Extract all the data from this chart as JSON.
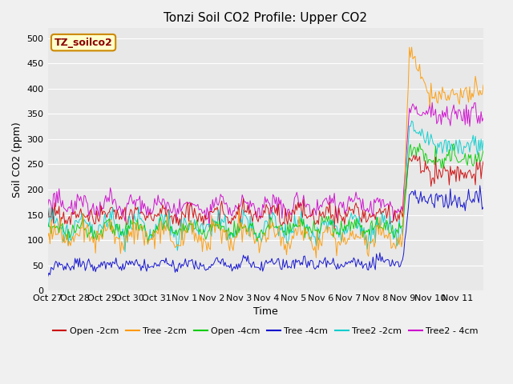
{
  "title": "Tonzi Soil CO2 Profile: Upper CO2",
  "xlabel": "Time",
  "ylabel": "Soil CO2 (ppm)",
  "ylim": [
    0,
    520
  ],
  "yticks": [
    0,
    50,
    100,
    150,
    200,
    250,
    300,
    350,
    400,
    450,
    500
  ],
  "x_labels": [
    "Oct 27",
    "Oct 28",
    "Oct 29",
    "Oct 30",
    "Oct 31",
    "Nov 1",
    "Nov 2",
    "Nov 3",
    "Nov 4",
    "Nov 5",
    "Nov 6",
    "Nov 7",
    "Nov 8",
    "Nov 9",
    "Nov 10",
    "Nov 11"
  ],
  "legend_label": "TZ_soilco2",
  "series": {
    "Open -2cm": {
      "color": "#cc0000"
    },
    "Tree -2cm": {
      "color": "#ff9900"
    },
    "Open -4cm": {
      "color": "#00cc00"
    },
    "Tree -4cm": {
      "color": "#0000cc"
    },
    "Tree2 -2cm": {
      "color": "#00cccc"
    },
    "Tree2 - 4cm": {
      "color": "#cc00cc"
    }
  },
  "plot_bg_color": "#e8e8e8",
  "fig_bg_color": "#f0f0f0",
  "title_fontsize": 11,
  "axis_fontsize": 9,
  "tick_fontsize": 8,
  "legend_fontsize": 8
}
